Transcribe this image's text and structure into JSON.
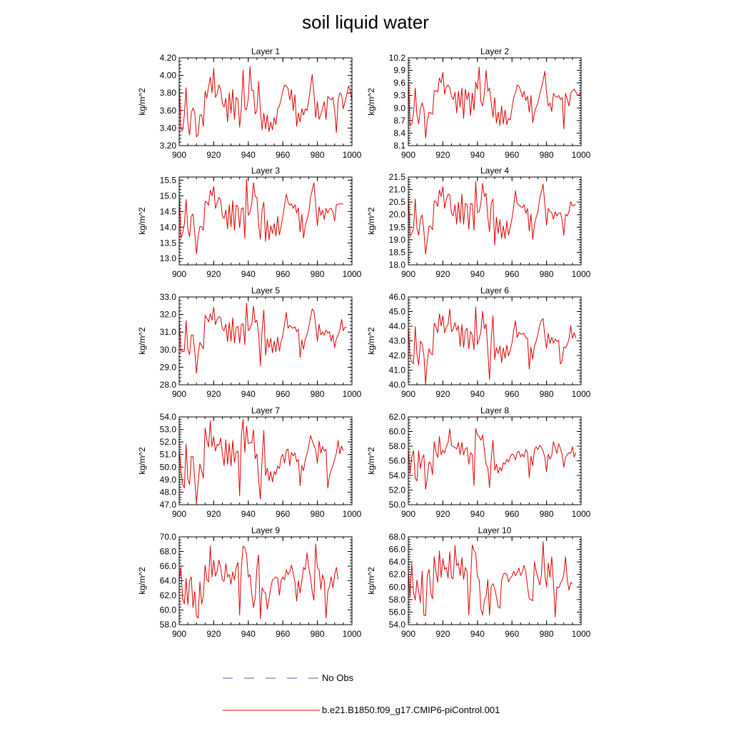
{
  "title": "soil liquid water",
  "legend": {
    "obs_label": "No Obs",
    "obs_color": "#5a5aa6",
    "model_label": "b.e21.B1850.f09_g17.CMIP6-piControl.001",
    "model_color": "#e00000"
  },
  "chart_data": [
    {
      "type": "line",
      "title": "Layer 1",
      "ylabel": "kg/m^2",
      "xlim": [
        900,
        1000
      ],
      "ylim": [
        3.2,
        4.2
      ],
      "xticks": [
        "900",
        "920",
        "940",
        "960",
        "980",
        "1000"
      ],
      "yticks": [
        "3.20",
        "3.40",
        "3.60",
        "3.80",
        "4.00",
        "4.20"
      ],
      "x_start": 900,
      "values": [
        3.91,
        3.38,
        3.37,
        3.55,
        3.86,
        3.46,
        3.32,
        3.57,
        3.63,
        3.58,
        3.3,
        3.33,
        3.55,
        3.55,
        3.42,
        3.82,
        3.74,
        3.87,
        3.98,
        3.8,
        4.08,
        3.75,
        3.79,
        3.89,
        3.84,
        3.68,
        3.64,
        3.74,
        3.47,
        3.8,
        3.57,
        3.84,
        3.5,
        3.75,
        3.72,
        3.41,
        3.64,
        4.06,
        3.62,
        3.61,
        3.74,
        4.1,
        3.83,
        3.83,
        3.56,
        3.6,
        3.93,
        3.6,
        3.38,
        3.57,
        3.39,
        3.55,
        3.36,
        3.47,
        3.38,
        3.52,
        3.44,
        3.62,
        3.65,
        3.73,
        3.82,
        3.89,
        3.88,
        3.85,
        3.72,
        3.84,
        3.6,
        3.78,
        3.42,
        3.57,
        3.47,
        3.62,
        3.55,
        3.62,
        3.6,
        3.72,
        3.86,
        4.01,
        3.8,
        3.52,
        3.7,
        3.5,
        3.55,
        3.63,
        3.7,
        3.5,
        3.76,
        3.74,
        3.72,
        3.75,
        3.6,
        3.35,
        3.72,
        3.8,
        3.78,
        3.62,
        3.7,
        3.78,
        3.88,
        3.83,
        3.72
      ]
    },
    {
      "type": "line",
      "title": "Layer 2",
      "ylabel": "kg/m^2",
      "xlim": [
        900,
        1000
      ],
      "ylim": [
        8.1,
        10.2
      ],
      "xticks": [
        "900",
        "920",
        "940",
        "960",
        "980",
        "1000"
      ],
      "yticks": [
        "8.1",
        "8.4",
        "8.7",
        "9.0",
        "9.3",
        "9.6",
        "9.9",
        "10.2"
      ],
      "x_start": 900,
      "values": [
        9.68,
        8.58,
        8.62,
        8.85,
        9.48,
        8.82,
        8.62,
        8.98,
        9.12,
        8.98,
        8.28,
        8.7,
        8.9,
        8.88,
        8.85,
        9.42,
        9.42,
        9.38,
        9.72,
        9.6,
        9.85,
        9.33,
        9.5,
        9.55,
        9.48,
        9.28,
        9.2,
        9.38,
        8.88,
        9.4,
        9.02,
        9.48,
        8.75,
        9.45,
        9.2,
        9.38,
        8.82,
        9.36,
        8.95,
        9.62,
        9.45,
        9.98,
        9.15,
        9.05,
        9.35,
        9.9,
        9.4,
        9.48,
        9.12,
        8.78,
        9.25,
        8.64,
        8.9,
        8.58,
        9.05,
        8.62,
        8.95,
        8.6,
        8.75,
        8.72,
        9.0,
        9.25,
        9.35,
        9.55,
        9.52,
        9.42,
        9.26,
        9.4,
        9.18,
        9.28,
        8.9,
        9.3,
        8.65,
        8.88,
        9.02,
        9.12,
        9.32,
        9.48,
        9.65,
        9.88,
        9.36,
        9.05,
        9.12,
        8.92,
        9.35,
        9.28,
        9.25,
        9.3,
        9.2,
        9.25,
        8.5,
        9.35,
        9.2,
        9.05,
        9.35,
        9.42,
        9.45,
        9.38,
        9.3,
        9.32,
        9.38
      ]
    },
    {
      "type": "line",
      "title": "Layer 3",
      "ylabel": "kg/m^2",
      "xlim": [
        900,
        1000
      ],
      "ylim": [
        12.8,
        15.6
      ],
      "xticks": [
        "900",
        "920",
        "940",
        "960",
        "980",
        "1000"
      ],
      "yticks": [
        "13.0",
        "13.5",
        "14.0",
        "14.5",
        "15.0",
        "15.5"
      ],
      "x_start": 900,
      "values": [
        15.12,
        13.65,
        13.8,
        14.1,
        14.88,
        13.95,
        13.7,
        14.35,
        14.42,
        13.85,
        13.15,
        13.72,
        14.02,
        14.02,
        13.9,
        14.82,
        14.8,
        14.7,
        15.18,
        15.0,
        15.3,
        14.6,
        14.78,
        14.95,
        14.88,
        14.35,
        14.28,
        14.55,
        13.95,
        14.72,
        14.02,
        14.85,
        13.9,
        14.7,
        14.65,
        13.98,
        14.58,
        14.62,
        13.65,
        15.52,
        14.38,
        14.48,
        14.75,
        15.42,
        14.98,
        14.95,
        14.06,
        13.62,
        14.55,
        14.8,
        13.55,
        14.22,
        13.6,
        14.05,
        13.8,
        14.12,
        13.72,
        14.35,
        13.75,
        14.02,
        14.35,
        14.72,
        15.05,
        14.8,
        14.7,
        14.75,
        14.6,
        14.72,
        14.45,
        14.62,
        13.85,
        14.42,
        13.65,
        14.05,
        14.25,
        14.45,
        14.95,
        15.18,
        15.42,
        14.7,
        14.05,
        14.65,
        14.38,
        14.55,
        14.25,
        14.6,
        14.45,
        14.58,
        14.6,
        14.48,
        14.2,
        14.72,
        14.72,
        14.75,
        14.74,
        14.73
      ]
    },
    {
      "type": "line",
      "title": "Layer 4",
      "ylabel": "kg/m^2",
      "xlim": [
        900,
        1000
      ],
      "ylim": [
        18.0,
        21.5
      ],
      "xticks": [
        "900",
        "920",
        "940",
        "960",
        "980",
        "1000"
      ],
      "yticks": [
        "18.0",
        "18.5",
        "19.0",
        "19.5",
        "20.0",
        "20.5",
        "21.0",
        "21.5"
      ],
      "x_start": 900,
      "values": [
        20.75,
        19.15,
        19.25,
        19.45,
        20.62,
        19.45,
        19.18,
        19.85,
        19.98,
        19.35,
        18.42,
        19.02,
        19.55,
        19.52,
        19.4,
        20.55,
        20.52,
        20.32,
        20.98,
        20.72,
        21.12,
        20.25,
        20.62,
        20.82,
        20.78,
        20.05,
        19.95,
        20.4,
        19.62,
        20.5,
        19.68,
        20.82,
        19.62,
        20.45,
        20.4,
        19.42,
        20.45,
        20.42,
        19.38,
        21.32,
        20.08,
        20.12,
        20.45,
        21.25,
        20.72,
        20.85,
        19.9,
        19.32,
        20.45,
        20.62,
        18.78,
        19.9,
        19.25,
        19.8,
        19.05,
        19.55,
        19.05,
        19.75,
        19.18,
        19.5,
        19.85,
        20.32,
        20.95,
        20.45,
        20.38,
        20.32,
        20.28,
        20.4,
        20.05,
        20.25,
        19.35,
        20.02,
        19.02,
        19.6,
        19.9,
        20.1,
        20.62,
        20.92,
        21.22,
        20.45,
        19.58,
        20.25,
        20.12,
        20.08,
        19.82,
        20.12,
        19.95,
        20.05,
        20.08,
        19.8,
        19.18,
        20.02,
        19.95,
        20.12,
        20.52,
        20.35,
        20.38,
        20.4
      ]
    },
    {
      "type": "line",
      "title": "Layer 5",
      "ylabel": "kg/m^2",
      "xlim": [
        900,
        1000
      ],
      "ylim": [
        28.0,
        33.0
      ],
      "xticks": [
        "900",
        "920",
        "940",
        "960",
        "980",
        "1000"
      ],
      "yticks": [
        "28.0",
        "29.0",
        "30.0",
        "31.0",
        "32.0",
        "33.0"
      ],
      "x_start": 900,
      "values": [
        31.62,
        29.92,
        29.88,
        29.92,
        31.65,
        30.02,
        29.72,
        30.82,
        30.82,
        29.95,
        28.65,
        29.78,
        30.42,
        30.22,
        30.05,
        31.95,
        31.8,
        31.58,
        32.05,
        31.68,
        32.42,
        31.42,
        31.72,
        31.88,
        31.82,
        31.18,
        31.08,
        31.45,
        30.45,
        31.55,
        30.48,
        31.82,
        30.38,
        31.28,
        31.32,
        30.38,
        31.42,
        31.48,
        30.28,
        32.65,
        31.08,
        31.22,
        31.48,
        32.48,
        31.55,
        31.68,
        30.88,
        29.08,
        31.12,
        32.25,
        29.68,
        30.62,
        30.12,
        30.65,
        29.82,
        30.48,
        29.88,
        30.72,
        29.92,
        30.45,
        30.82,
        31.45,
        32.12,
        31.22,
        31.38,
        31.28,
        31.22,
        31.3,
        31.02,
        31.18,
        29.55,
        30.55,
        30.02,
        30.62,
        30.85,
        31.28,
        31.82,
        32.32,
        32.18,
        31.38,
        30.48,
        31.45,
        30.85,
        31.02,
        30.82,
        31.12,
        30.95,
        31.02,
        30.48,
        30.85,
        30.12,
        30.62,
        30.82,
        31.12,
        31.72,
        31.08,
        31.28,
        31.25
      ]
    },
    {
      "type": "line",
      "title": "Layer 6",
      "ylabel": "kg/m^2",
      "xlim": [
        900,
        1000
      ],
      "ylim": [
        40.0,
        46.0
      ],
      "xticks": [
        "900",
        "920",
        "940",
        "960",
        "980",
        "1000"
      ],
      "yticks": [
        "40.0",
        "41.0",
        "42.0",
        "43.0",
        "44.0",
        "45.0",
        "46.0"
      ],
      "x_start": 900,
      "values": [
        43.92,
        41.92,
        41.55,
        41.45,
        43.98,
        42.05,
        41.35,
        42.98,
        42.78,
        42.05,
        40.05,
        41.65,
        42.45,
        42.15,
        42.05,
        44.22,
        43.95,
        43.55,
        44.85,
        44.02,
        44.72,
        43.55,
        43.95,
        44.12,
        45.18,
        43.62,
        43.82,
        44.25,
        43.72,
        44.05,
        42.62,
        44.12,
        42.55,
        43.65,
        43.88,
        42.45,
        43.65,
        43.38,
        42.38,
        45.32,
        42.75,
        43.15,
        43.62,
        45.02,
        43.82,
        44.15,
        42.32,
        40.35,
        43.12,
        44.72,
        41.72,
        42.55,
        42.12,
        42.65,
        41.52,
        42.52,
        41.82,
        42.72,
        41.98,
        42.35,
        42.85,
        43.72,
        44.38,
        43.22,
        43.58,
        43.48,
        43.45,
        43.52,
        43.22,
        43.18,
        41.08,
        42.58,
        41.75,
        42.65,
        42.98,
        43.45,
        44.05,
        44.38,
        44.52,
        43.35,
        42.48,
        43.52,
        42.82,
        43.25,
        42.85,
        43.12,
        42.95,
        43.05,
        41.42,
        41.62,
        42.58,
        42.52,
        42.75,
        43.12,
        44.05,
        43.18,
        43.55,
        43.2
      ]
    },
    {
      "type": "line",
      "title": "Layer 7",
      "ylabel": "kg/m^2",
      "xlim": [
        900,
        1000
      ],
      "ylim": [
        47.0,
        54.0
      ],
      "xticks": [
        "900",
        "920",
        "940",
        "960",
        "980",
        "1000"
      ],
      "yticks": [
        "47.0",
        "48.0",
        "49.0",
        "50.0",
        "51.0",
        "52.0",
        "53.0",
        "54.0"
      ],
      "x_start": 900,
      "values": [
        51.25,
        49.8,
        48.62,
        48.32,
        51.85,
        49.05,
        48.62,
        50.85,
        50.82,
        49.05,
        47.12,
        48.82,
        50.25,
        49.72,
        49.12,
        53.12,
        52.2,
        51.58,
        53.68,
        51.62,
        52.42,
        51.28,
        51.82,
        51.72,
        52.32,
        51.08,
        50.12,
        52.18,
        50.22,
        51.88,
        50.08,
        52.12,
        50.38,
        51.18,
        51.28,
        47.72,
        52.48,
        53.82,
        51.18,
        53.25,
        51.88,
        51.95,
        51.92,
        52.98,
        50.68,
        51.05,
        48.92,
        47.45,
        50.72,
        52.92,
        49.32,
        49.92,
        48.92,
        49.65,
        48.82,
        49.65,
        49.42,
        50.08,
        49.88,
        50.78,
        51.02,
        50.32,
        51.32,
        51.45,
        50.12,
        51.18,
        50.88,
        51.12,
        50.42,
        50.62,
        48.52,
        50.12,
        49.72,
        50.58,
        51.05,
        51.68,
        52.52,
        52.12,
        51.75,
        51.38,
        50.32,
        52.08,
        51.12,
        51.62,
        51.28,
        51.42,
        48.32,
        49.28,
        49.78,
        50.12,
        50.62,
        51.12,
        52.12,
        51.05,
        51.68,
        51.3
      ]
    },
    {
      "type": "line",
      "title": "Layer 8",
      "ylabel": "kg/m^2",
      "xlim": [
        900,
        1000
      ],
      "ylim": [
        50.0,
        62.0
      ],
      "xticks": [
        "900",
        "920",
        "940",
        "960",
        "980",
        "1000"
      ],
      "yticks": [
        "50.0",
        "52.0",
        "54.0",
        "56.0",
        "58.0",
        "60.0",
        "62.0"
      ],
      "x_start": 900,
      "values": [
        57.52,
        54.22,
        56.55,
        57.38,
        53.62,
        53.25,
        57.38,
        54.95,
        56.32,
        56.82,
        52.12,
        53.72,
        55.85,
        55.62,
        54.12,
        58.62,
        57.22,
        56.42,
        59.32,
        56.82,
        57.45,
        57.05,
        57.92,
        58.52,
        60.38,
        58.12,
        57.92,
        57.82,
        57.62,
        58.52,
        56.82,
        58.52,
        56.82,
        57.62,
        57.82,
        55.52,
        57.12,
        56.82,
        52.62,
        60.42,
        59.52,
        59.32,
        58.82,
        59.52,
        57.52,
        55.52,
        55.12,
        52.32,
        56.32,
        58.82,
        54.72,
        55.52,
        54.32,
        55.12,
        54.62,
        55.72,
        55.52,
        56.22,
        55.82,
        56.52,
        56.92,
        56.82,
        56.12,
        57.12,
        57.32,
        56.52,
        56.92,
        56.52,
        57.52,
        57.22,
        53.72,
        56.62,
        55.32,
        57.52,
        57.92,
        57.52,
        58.12,
        57.82,
        57.32,
        56.52,
        54.52,
        56.92,
        56.22,
        56.72,
        58.62,
        57.82,
        57.02,
        58.32,
        57.72,
        56.92,
        55.12,
        56.52,
        56.82,
        57.12,
        57.02,
        57.92,
        56.52,
        57.12
      ]
    },
    {
      "type": "line",
      "title": "Layer 9",
      "ylabel": "kg/m^2",
      "xlim": [
        900,
        1000
      ],
      "ylim": [
        58.0,
        70.0
      ],
      "xticks": [
        "900",
        "920",
        "940",
        "960",
        "980",
        "1000"
      ],
      "yticks": [
        "58.0",
        "60.0",
        "62.0",
        "64.0",
        "66.0",
        "68.0",
        "70.0"
      ],
      "x_start": 900,
      "values": [
        64.02,
        65.82,
        61.52,
        60.82,
        64.32,
        60.72,
        63.92,
        64.52,
        60.32,
        62.52,
        59.12,
        58.92,
        63.82,
        60.82,
        61.92,
        66.12,
        64.22,
        63.82,
        68.72,
        64.52,
        66.82,
        64.62,
        65.32,
        66.82,
        65.82,
        64.12,
        63.92,
        66.32,
        64.52,
        64.82,
        63.52,
        65.22,
        64.12,
        65.82,
        66.52,
        59.32,
        65.82,
        68.72,
        68.52,
        67.52,
        64.52,
        64.82,
        62.32,
        60.32,
        61.72,
        65.82,
        67.52,
        58.82,
        63.02,
        62.52,
        62.32,
        60.12,
        61.52,
        63.02,
        64.12,
        64.32,
        64.52,
        64.32,
        62.02,
        64.02,
        64.52,
        64.12,
        65.52,
        64.82,
        65.22,
        66.12,
        65.02,
        63.82,
        61.22,
        64.02,
        62.32,
        64.02,
        65.82,
        65.52,
        67.82,
        65.82,
        64.52,
        62.52,
        61.32,
        69.02,
        65.82,
        65.52,
        62.82,
        64.82,
        64.02,
        58.92,
        62.52,
        63.22,
        64.52,
        63.02,
        64.82,
        65.82,
        64.22
      ]
    },
    {
      "type": "line",
      "title": "Layer 10",
      "ylabel": "kg/m^2",
      "xlim": [
        900,
        1000
      ],
      "ylim": [
        54.0,
        68.0
      ],
      "xticks": [
        "900",
        "920",
        "940",
        "960",
        "980",
        "1000"
      ],
      "yticks": [
        "54.0",
        "56.0",
        "58.0",
        "60.0",
        "62.0",
        "64.0",
        "66.0",
        "68.0"
      ],
      "x_start": 900,
      "values": [
        62.22,
        58.42,
        63.82,
        59.12,
        57.92,
        61.12,
        59.22,
        57.52,
        62.52,
        55.52,
        55.42,
        61.82,
        62.82,
        59.02,
        58.12,
        64.82,
        62.42,
        60.72,
        65.72,
        61.52,
        64.52,
        62.82,
        63.12,
        61.42,
        65.62,
        61.52,
        61.32,
        66.62,
        63.42,
        63.82,
        61.82,
        64.72,
        61.22,
        63.12,
        62.42,
        55.52,
        60.82,
        66.72,
        65.82,
        65.42,
        61.52,
        61.22,
        56.52,
        55.52,
        57.82,
        58.52,
        61.22,
        55.52,
        60.12,
        60.52,
        59.72,
        58.42,
        56.82,
        56.62,
        61.02,
        62.02,
        62.22,
        62.02,
        60.82,
        61.42,
        61.72,
        62.52,
        61.82,
        62.32,
        63.02,
        61.82,
        62.42,
        63.42,
        62.42,
        60.02,
        58.12,
        58.02,
        57.82,
        64.02,
        62.52,
        61.52,
        60.32,
        61.82,
        67.22,
        62.02,
        60.02,
        63.82,
        61.52,
        64.82,
        60.72,
        55.22,
        60.02,
        59.82,
        60.52,
        61.02,
        62.02,
        64.82,
        61.12,
        59.52,
        60.72,
        60.52
      ]
    }
  ]
}
